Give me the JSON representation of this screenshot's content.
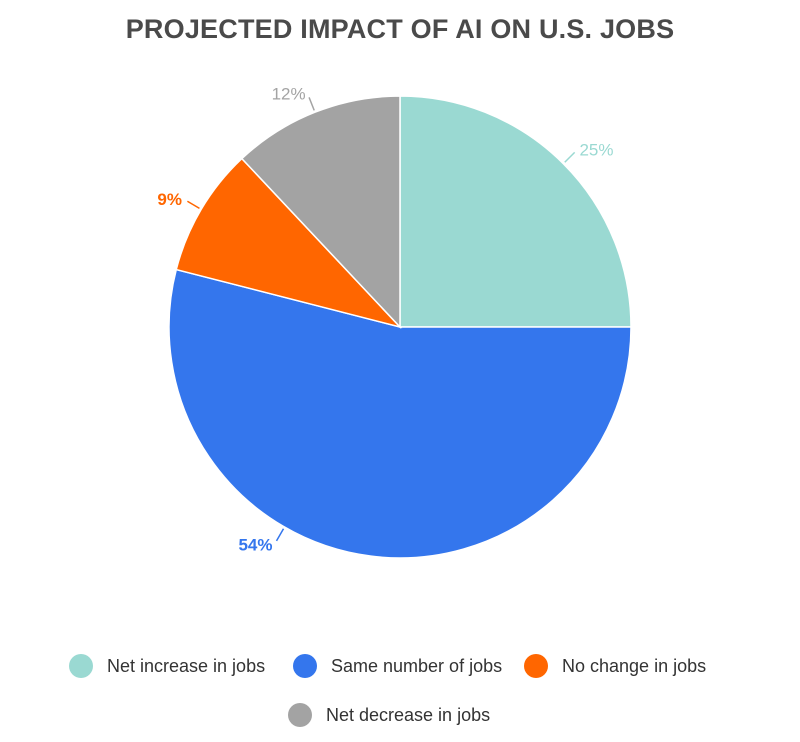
{
  "chart_data": {
    "type": "pie",
    "title": "PROJECTED IMPACT OF AI ON U.S. JOBS",
    "categories": [
      "Net increase in jobs",
      "Same number of jobs",
      "No change in jobs",
      "Net decrease in jobs"
    ],
    "values": [
      25,
      54,
      9,
      12
    ],
    "labels": [
      "25%",
      "54%",
      "9%",
      "12%"
    ],
    "colors": [
      "#9ad9d2",
      "#3476ed",
      "#ff6600",
      "#a3a3a3"
    ],
    "legend_position": "bottom"
  }
}
